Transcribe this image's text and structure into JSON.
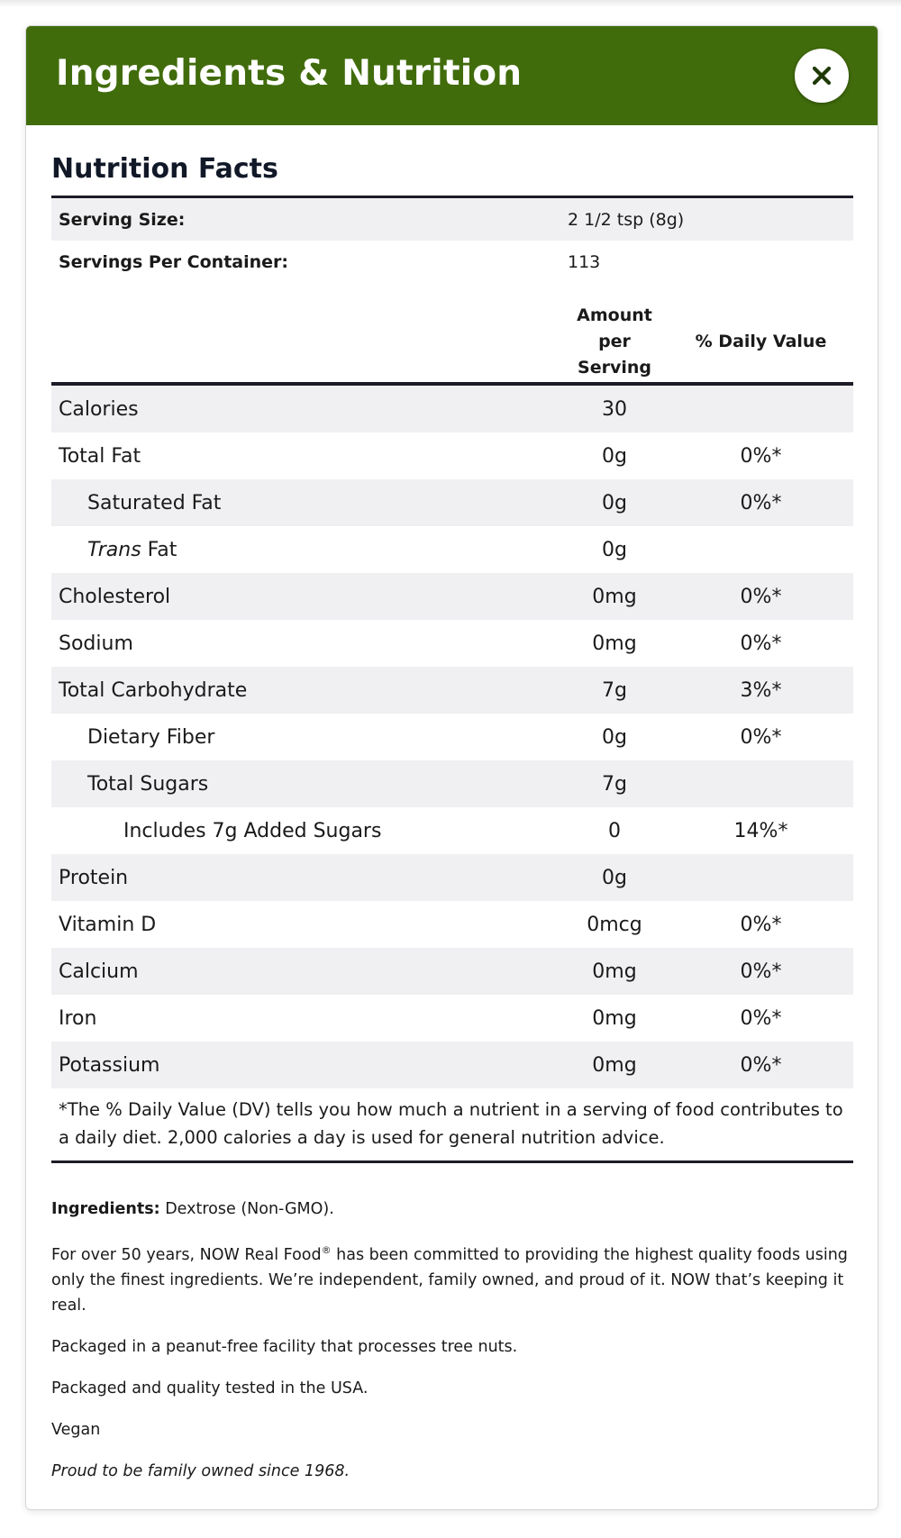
{
  "modal": {
    "title": "Ingredients & Nutrition",
    "close_icon": "close-icon"
  },
  "nutrition": {
    "title": "Nutrition Facts",
    "serving_size_label": "Serving Size:",
    "serving_size_value": "2 1/2 tsp (8g)",
    "servings_per_container_label": "Servings Per Container:",
    "servings_per_container_value": "113",
    "column_headers": {
      "amount_line1": "Amount per",
      "amount_line2": "Serving",
      "daily_value": "% Daily Value"
    },
    "rows": [
      {
        "name": "Calories",
        "amount": "30",
        "dv": ""
      },
      {
        "name": "Total Fat",
        "amount": "0g",
        "dv": "0%*"
      },
      {
        "name": "Saturated Fat",
        "amount": "0g",
        "dv": "0%*"
      },
      {
        "name_italic": "Trans",
        "name_rest": " Fat",
        "amount": "0g",
        "dv": ""
      },
      {
        "name": "Cholesterol",
        "amount": "0mg",
        "dv": "0%*"
      },
      {
        "name": "Sodium",
        "amount": "0mg",
        "dv": "0%*"
      },
      {
        "name": "Total Carbohydrate",
        "amount": "7g",
        "dv": "3%*"
      },
      {
        "name": "Dietary Fiber",
        "amount": "0g",
        "dv": "0%*"
      },
      {
        "name": "Total Sugars",
        "amount": "7g",
        "dv": ""
      },
      {
        "name": "Includes 7g Added Sugars",
        "amount": "0",
        "dv": "14%*"
      },
      {
        "name": "Protein",
        "amount": "0g",
        "dv": ""
      },
      {
        "name": "Vitamin D",
        "amount": "0mcg",
        "dv": "0%*"
      },
      {
        "name": "Calcium",
        "amount": "0mg",
        "dv": "0%*"
      },
      {
        "name": "Iron",
        "amount": "0mg",
        "dv": "0%*"
      },
      {
        "name": "Potassium",
        "amount": "0mg",
        "dv": "0%*"
      }
    ],
    "footnote": "*The % Daily Value (DV) tells you how much a nutrient in a serving of food contributes to a daily diet. 2,000 calories a day is used for general nutrition advice."
  },
  "details": {
    "ingredients_label": "Ingredients:",
    "ingredients_value": " Dextrose (Non-GMO).",
    "brand_part1": "For over 50 years, NOW Real Food",
    "brand_reg": "®",
    "brand_part2": " has been committed to providing the highest quality foods using only the finest ingredients. We’re independent, family owned, and proud of it. NOW that’s keeping it real.",
    "facility": "Packaged in a peanut-free facility that processes tree nuts.",
    "tested": "Packaged and quality tested in the USA.",
    "vegan": "Vegan",
    "tagline": "Proud to be family owned since 1968."
  },
  "colors": {
    "header_bg": "#416c0c",
    "close_icon": "#1f3a06",
    "row_shade": "#f0f0f2",
    "rule": "#1c1c28"
  }
}
